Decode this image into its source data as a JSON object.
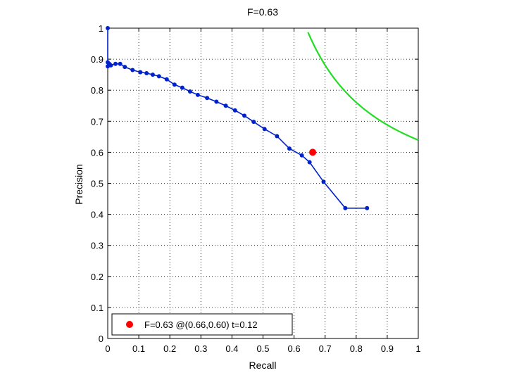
{
  "chart_data": {
    "type": "line",
    "title": "F=0.63",
    "xlabel": "Recall",
    "ylabel": "Precision",
    "xlim": [
      0,
      1
    ],
    "ylim": [
      0,
      1
    ],
    "grid": true,
    "xticks": [
      0,
      0.1,
      0.2,
      0.3,
      0.4,
      0.5,
      0.6,
      0.7,
      0.8,
      0.9,
      1
    ],
    "yticks": [
      0,
      0.1,
      0.2,
      0.3,
      0.4,
      0.5,
      0.6,
      0.7,
      0.8,
      0.9,
      1
    ],
    "xtick_labels": [
      "0",
      "0.1",
      "0.2",
      "0.3",
      "0.4",
      "0.5",
      "0.6",
      "0.7",
      "0.8",
      "0.9",
      "1"
    ],
    "ytick_labels": [
      "0",
      "0.1",
      "0.2",
      "0.3",
      "0.4",
      "0.5",
      "0.6",
      "0.7",
      "0.8",
      "0.9",
      "1"
    ],
    "series": [
      {
        "color": "#0022cc",
        "marker": "dot",
        "x": [
          0.0,
          0.0,
          0.0,
          0.005,
          0.01,
          0.025,
          0.04,
          0.055,
          0.08,
          0.105,
          0.125,
          0.145,
          0.165,
          0.19,
          0.215,
          0.24,
          0.265,
          0.29,
          0.32,
          0.35,
          0.38,
          0.41,
          0.44,
          0.47,
          0.505,
          0.545,
          0.585,
          0.625,
          0.65,
          0.695,
          0.765,
          0.835
        ],
        "y": [
          1.0,
          0.89,
          0.877,
          0.885,
          0.88,
          0.885,
          0.885,
          0.875,
          0.865,
          0.858,
          0.855,
          0.85,
          0.845,
          0.835,
          0.818,
          0.808,
          0.796,
          0.785,
          0.775,
          0.763,
          0.75,
          0.735,
          0.718,
          0.698,
          0.675,
          0.652,
          0.612,
          0.59,
          0.568,
          0.505,
          0.42,
          0.42
        ]
      },
      {
        "color": "#22dd22",
        "marker": "none",
        "type": "iso-f",
        "f_value": 0.78,
        "x_from": 0.645,
        "x_to": 1.0
      }
    ],
    "highlight_point": {
      "x": 0.66,
      "y": 0.6,
      "color": "#ff0000"
    },
    "legend": {
      "position": "bottom-left",
      "entries": [
        {
          "label": "F=0.63 @(0.66,0.60) t=0.12",
          "marker_color": "#ff0000"
        }
      ]
    }
  }
}
